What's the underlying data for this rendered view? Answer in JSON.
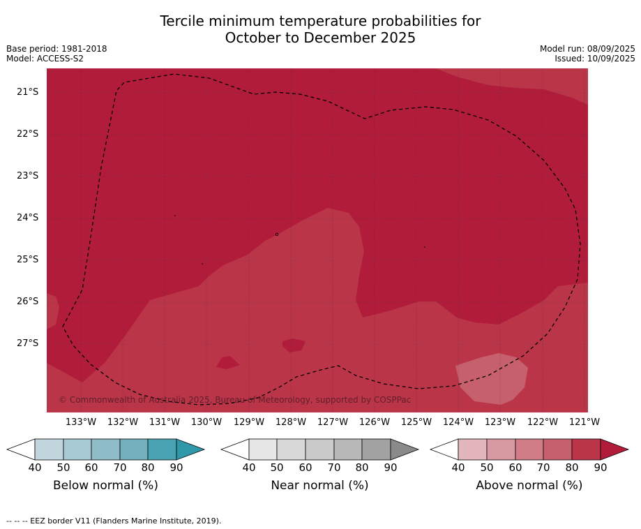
{
  "title_line1": "Tercile minimum temperature probabilities for",
  "title_line2": "October to December 2025",
  "base_period": "Base period: 1981-2018",
  "model": "Model: ACCESS-S2",
  "model_run": "Model run: 08/09/2025",
  "issued": "Issued: 10/09/2025",
  "copyright": "© Commonwealth of Australia 2025, Bureau of Meteorology, supported by COSPPac",
  "footnote": "--  --  -- EEZ border V11 (Flanders Marine Institute, 2019).",
  "lat_ticks": [
    "21°S",
    "22°S",
    "23°S",
    "24°S",
    "25°S",
    "26°S",
    "27°S"
  ],
  "lon_ticks": [
    "133°W",
    "132°W",
    "131°W",
    "130°W",
    "129°W",
    "128°W",
    "127°W",
    "126°W",
    "125°W",
    "124°W",
    "123°W",
    "122°W",
    "121°W"
  ],
  "colorbars": [
    {
      "label": "Below normal (%)",
      "ticks": [
        "40",
        "50",
        "60",
        "70",
        "80",
        "90"
      ],
      "colors": [
        "#c0d6dc",
        "#a8cad2",
        "#8fbdc7",
        "#73b0bd",
        "#4aa3b2",
        "#2e98a8"
      ]
    },
    {
      "label": "Near normal (%)",
      "ticks": [
        "40",
        "50",
        "60",
        "70",
        "80",
        "90"
      ],
      "colors": [
        "#e6e6e6",
        "#d8d8d8",
        "#cacaca",
        "#b8b8b8",
        "#a2a2a2",
        "#8a8a8a"
      ]
    },
    {
      "label": "Above normal (%)",
      "ticks": [
        "40",
        "50",
        "60",
        "70",
        "80",
        "90"
      ],
      "colors": [
        "#e2b6bc",
        "#d89aa2",
        "#d07d87",
        "#c6606d",
        "#bb3549",
        "#b01c3a"
      ]
    }
  ],
  "map_colors": {
    "high": "#b01c3a",
    "mid": "#bb3549"
  }
}
